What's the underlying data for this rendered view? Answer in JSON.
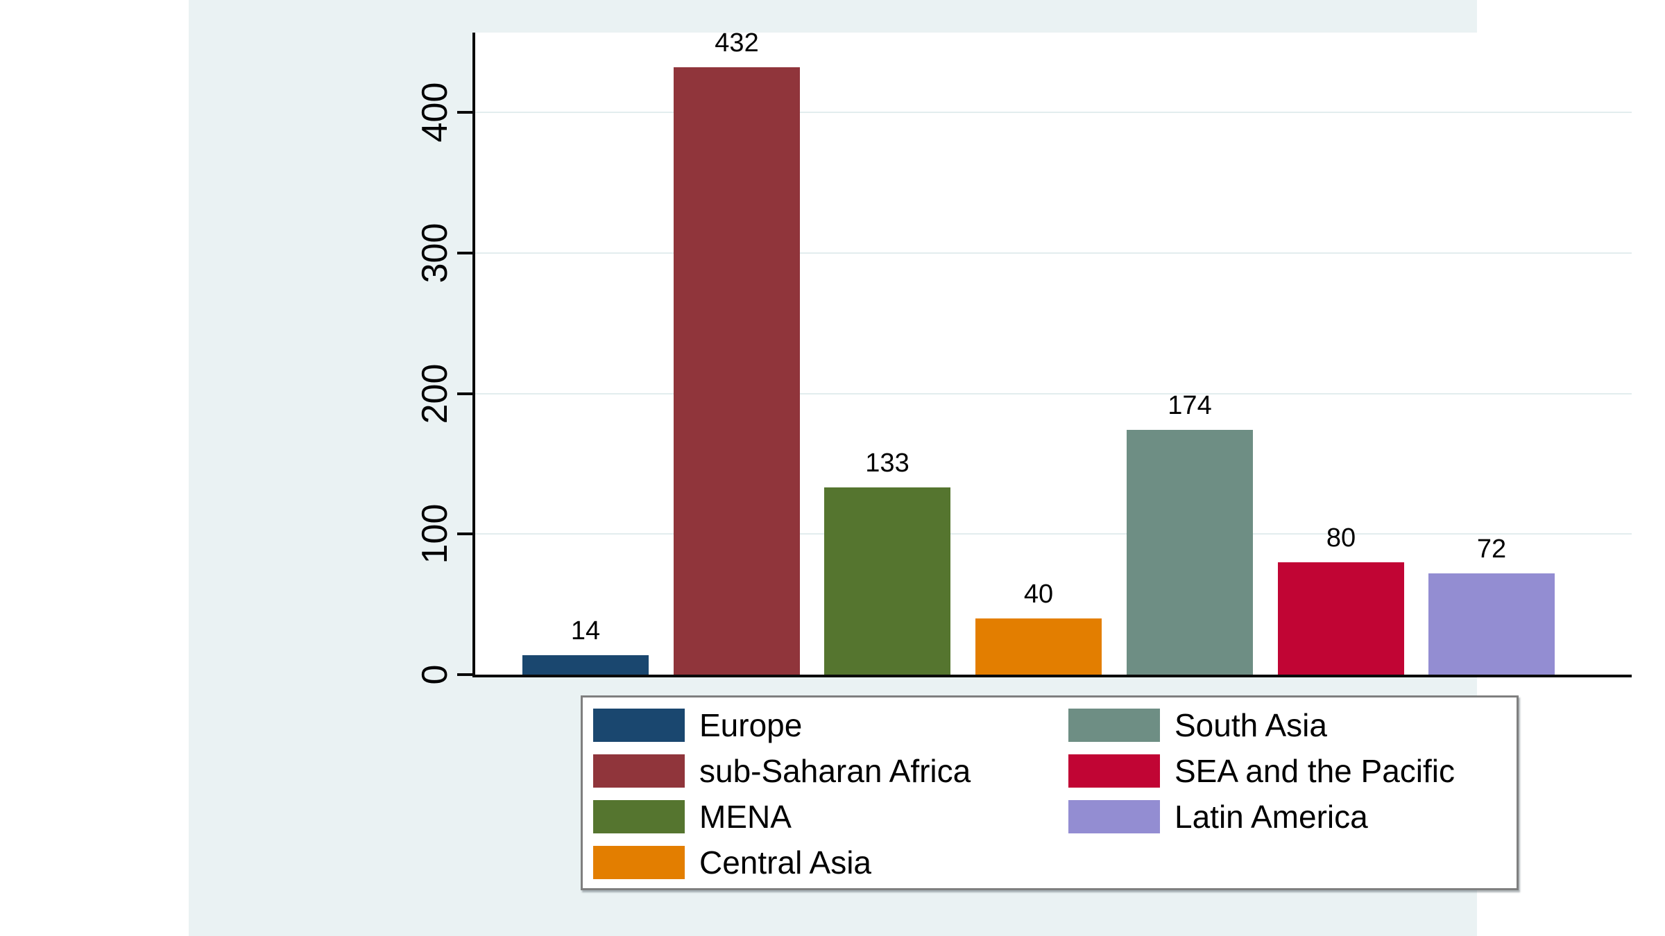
{
  "chart_data": {
    "type": "bar",
    "title": "",
    "xlabel": "",
    "ylabel": "",
    "categories": [
      "Europe",
      "sub-Saharan Africa",
      "MENA",
      "Central Asia",
      "South Asia",
      "SEA and the Pacific",
      "Latin America"
    ],
    "values": [
      14,
      432,
      133,
      40,
      174,
      80,
      72
    ],
    "bar_colors": [
      "#1a476f",
      "#90353b",
      "#55752f",
      "#e37e00",
      "#6e8e84",
      "#c10534",
      "#938dd2"
    ],
    "yticks": [
      0,
      100,
      200,
      300,
      400
    ],
    "ylim": [
      0,
      457
    ],
    "grid": true,
    "bar_value_labels_shown": true,
    "legend_position": "bottom",
    "legend_columns": 2,
    "legend_column_assignment": [
      [
        0,
        1,
        2,
        3
      ],
      [
        4,
        5,
        6
      ]
    ],
    "colors": {
      "plot_background": "#ffffff",
      "panel_background": "#eaf2f3",
      "gridline": "#e2edee",
      "axis": "#0a0a0a",
      "text": "#000000",
      "legend_border": "#7f7f7f",
      "legend_background": "#ffffff"
    }
  }
}
